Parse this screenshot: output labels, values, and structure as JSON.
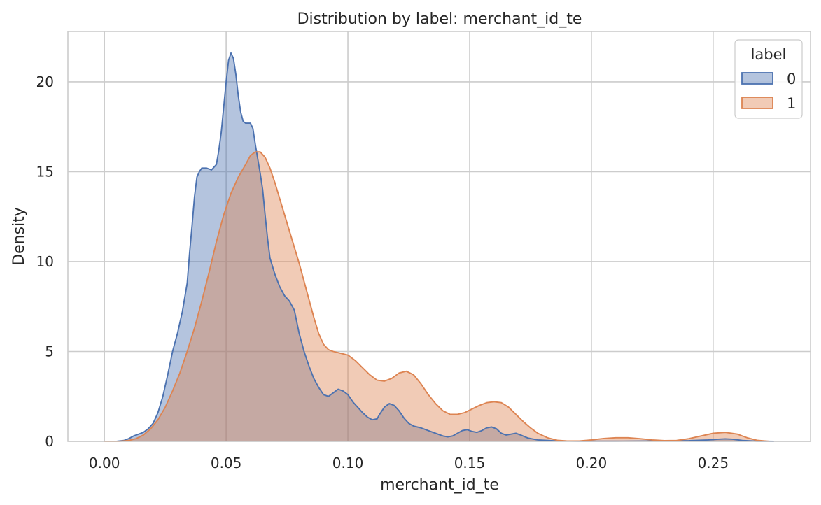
{
  "chart_data": {
    "type": "area",
    "title": "Distribution by label: merchant_id_te",
    "xlabel": "merchant_id_te",
    "ylabel": "Density",
    "xlim": [
      -0.015,
      0.29
    ],
    "ylim": [
      0,
      22.8
    ],
    "x_ticks": [
      0.0,
      0.05,
      0.1,
      0.15,
      0.2,
      0.25
    ],
    "x_tick_labels": [
      "0.00",
      "0.05",
      "0.10",
      "0.15",
      "0.20",
      "0.25"
    ],
    "y_ticks": [
      0,
      5,
      10,
      15,
      20
    ],
    "y_tick_labels": [
      "0",
      "5",
      "10",
      "15",
      "20"
    ],
    "grid": true,
    "legend": {
      "title": "label",
      "placement": "top-right"
    },
    "series": [
      {
        "name": "0",
        "color": "#4c72b0",
        "fill_opacity": 0.42,
        "points": [
          [
            0.0,
            0.0
          ],
          [
            0.005,
            0.0
          ],
          [
            0.008,
            0.05
          ],
          [
            0.01,
            0.15
          ],
          [
            0.012,
            0.3
          ],
          [
            0.014,
            0.4
          ],
          [
            0.016,
            0.5
          ],
          [
            0.018,
            0.7
          ],
          [
            0.02,
            1.0
          ],
          [
            0.022,
            1.6
          ],
          [
            0.024,
            2.5
          ],
          [
            0.026,
            3.7
          ],
          [
            0.028,
            5.0
          ],
          [
            0.03,
            6.0
          ],
          [
            0.032,
            7.2
          ],
          [
            0.034,
            8.8
          ],
          [
            0.035,
            10.5
          ],
          [
            0.036,
            12.0
          ],
          [
            0.037,
            13.6
          ],
          [
            0.038,
            14.7
          ],
          [
            0.039,
            15.0
          ],
          [
            0.04,
            15.2
          ],
          [
            0.042,
            15.2
          ],
          [
            0.044,
            15.1
          ],
          [
            0.046,
            15.4
          ],
          [
            0.047,
            16.2
          ],
          [
            0.048,
            17.2
          ],
          [
            0.049,
            18.6
          ],
          [
            0.05,
            20.0
          ],
          [
            0.051,
            21.2
          ],
          [
            0.052,
            21.6
          ],
          [
            0.053,
            21.3
          ],
          [
            0.054,
            20.4
          ],
          [
            0.055,
            19.2
          ],
          [
            0.056,
            18.3
          ],
          [
            0.057,
            17.8
          ],
          [
            0.058,
            17.7
          ],
          [
            0.06,
            17.7
          ],
          [
            0.061,
            17.4
          ],
          [
            0.062,
            16.5
          ],
          [
            0.063,
            15.7
          ],
          [
            0.064,
            14.9
          ],
          [
            0.065,
            14.0
          ],
          [
            0.066,
            12.6
          ],
          [
            0.067,
            11.3
          ],
          [
            0.068,
            10.2
          ],
          [
            0.07,
            9.3
          ],
          [
            0.072,
            8.6
          ],
          [
            0.074,
            8.1
          ],
          [
            0.076,
            7.8
          ],
          [
            0.078,
            7.3
          ],
          [
            0.08,
            6.0
          ],
          [
            0.082,
            5.0
          ],
          [
            0.084,
            4.2
          ],
          [
            0.086,
            3.5
          ],
          [
            0.088,
            3.0
          ],
          [
            0.09,
            2.6
          ],
          [
            0.092,
            2.5
          ],
          [
            0.094,
            2.7
          ],
          [
            0.096,
            2.9
          ],
          [
            0.098,
            2.8
          ],
          [
            0.1,
            2.6
          ],
          [
            0.102,
            2.2
          ],
          [
            0.104,
            1.9
          ],
          [
            0.106,
            1.6
          ],
          [
            0.108,
            1.35
          ],
          [
            0.11,
            1.2
          ],
          [
            0.112,
            1.25
          ],
          [
            0.113,
            1.5
          ],
          [
            0.115,
            1.9
          ],
          [
            0.117,
            2.1
          ],
          [
            0.119,
            2.0
          ],
          [
            0.121,
            1.7
          ],
          [
            0.123,
            1.3
          ],
          [
            0.125,
            1.0
          ],
          [
            0.127,
            0.85
          ],
          [
            0.13,
            0.75
          ],
          [
            0.133,
            0.6
          ],
          [
            0.136,
            0.45
          ],
          [
            0.139,
            0.3
          ],
          [
            0.141,
            0.25
          ],
          [
            0.143,
            0.3
          ],
          [
            0.145,
            0.45
          ],
          [
            0.147,
            0.6
          ],
          [
            0.149,
            0.65
          ],
          [
            0.151,
            0.55
          ],
          [
            0.153,
            0.5
          ],
          [
            0.155,
            0.6
          ],
          [
            0.157,
            0.75
          ],
          [
            0.159,
            0.8
          ],
          [
            0.161,
            0.7
          ],
          [
            0.163,
            0.45
          ],
          [
            0.165,
            0.35
          ],
          [
            0.167,
            0.4
          ],
          [
            0.169,
            0.45
          ],
          [
            0.171,
            0.35
          ],
          [
            0.174,
            0.18
          ],
          [
            0.178,
            0.08
          ],
          [
            0.185,
            0.03
          ],
          [
            0.195,
            0.01
          ],
          [
            0.21,
            0.01
          ],
          [
            0.225,
            0.02
          ],
          [
            0.24,
            0.04
          ],
          [
            0.248,
            0.08
          ],
          [
            0.252,
            0.12
          ],
          [
            0.255,
            0.14
          ],
          [
            0.258,
            0.12
          ],
          [
            0.262,
            0.05
          ],
          [
            0.268,
            0.01
          ],
          [
            0.275,
            0.0
          ]
        ]
      },
      {
        "name": "1",
        "color": "#dd8452",
        "fill_opacity": 0.42,
        "points": [
          [
            0.0,
            0.0
          ],
          [
            0.006,
            0.0
          ],
          [
            0.01,
            0.05
          ],
          [
            0.013,
            0.15
          ],
          [
            0.016,
            0.35
          ],
          [
            0.019,
            0.7
          ],
          [
            0.022,
            1.2
          ],
          [
            0.025,
            1.9
          ],
          [
            0.028,
            2.8
          ],
          [
            0.031,
            3.8
          ],
          [
            0.034,
            5.0
          ],
          [
            0.037,
            6.3
          ],
          [
            0.04,
            7.8
          ],
          [
            0.043,
            9.4
          ],
          [
            0.046,
            11.1
          ],
          [
            0.049,
            12.6
          ],
          [
            0.052,
            13.8
          ],
          [
            0.055,
            14.7
          ],
          [
            0.058,
            15.4
          ],
          [
            0.06,
            15.9
          ],
          [
            0.062,
            16.1
          ],
          [
            0.064,
            16.1
          ],
          [
            0.066,
            15.8
          ],
          [
            0.068,
            15.2
          ],
          [
            0.07,
            14.4
          ],
          [
            0.072,
            13.5
          ],
          [
            0.074,
            12.6
          ],
          [
            0.076,
            11.7
          ],
          [
            0.078,
            10.8
          ],
          [
            0.08,
            9.9
          ],
          [
            0.082,
            8.9
          ],
          [
            0.084,
            7.9
          ],
          [
            0.086,
            6.9
          ],
          [
            0.088,
            6.0
          ],
          [
            0.09,
            5.4
          ],
          [
            0.092,
            5.1
          ],
          [
            0.094,
            5.0
          ],
          [
            0.097,
            4.9
          ],
          [
            0.1,
            4.8
          ],
          [
            0.103,
            4.5
          ],
          [
            0.106,
            4.1
          ],
          [
            0.109,
            3.7
          ],
          [
            0.112,
            3.4
          ],
          [
            0.115,
            3.35
          ],
          [
            0.118,
            3.5
          ],
          [
            0.121,
            3.8
          ],
          [
            0.124,
            3.9
          ],
          [
            0.127,
            3.7
          ],
          [
            0.13,
            3.2
          ],
          [
            0.133,
            2.6
          ],
          [
            0.136,
            2.1
          ],
          [
            0.139,
            1.7
          ],
          [
            0.142,
            1.5
          ],
          [
            0.145,
            1.5
          ],
          [
            0.148,
            1.6
          ],
          [
            0.151,
            1.8
          ],
          [
            0.154,
            2.0
          ],
          [
            0.157,
            2.15
          ],
          [
            0.16,
            2.2
          ],
          [
            0.163,
            2.15
          ],
          [
            0.166,
            1.9
          ],
          [
            0.169,
            1.5
          ],
          [
            0.172,
            1.1
          ],
          [
            0.175,
            0.75
          ],
          [
            0.178,
            0.45
          ],
          [
            0.182,
            0.2
          ],
          [
            0.186,
            0.06
          ],
          [
            0.19,
            0.02
          ],
          [
            0.195,
            0.02
          ],
          [
            0.2,
            0.08
          ],
          [
            0.205,
            0.16
          ],
          [
            0.21,
            0.2
          ],
          [
            0.215,
            0.2
          ],
          [
            0.22,
            0.15
          ],
          [
            0.225,
            0.08
          ],
          [
            0.23,
            0.04
          ],
          [
            0.235,
            0.05
          ],
          [
            0.24,
            0.15
          ],
          [
            0.245,
            0.3
          ],
          [
            0.25,
            0.45
          ],
          [
            0.255,
            0.5
          ],
          [
            0.26,
            0.4
          ],
          [
            0.264,
            0.2
          ],
          [
            0.268,
            0.06
          ],
          [
            0.273,
            0.0
          ]
        ]
      }
    ]
  }
}
